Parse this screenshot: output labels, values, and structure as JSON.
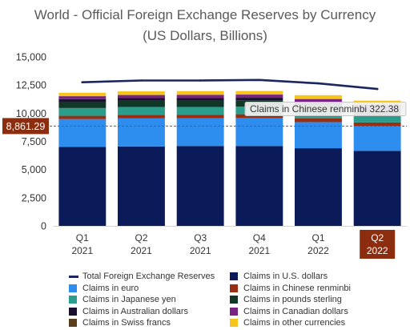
{
  "chart_data": {
    "type": "bar",
    "stacked": true,
    "title": "World - Official Foreign Exchange Reserves by Currency",
    "subtitle": "(US Dollars, Billions)",
    "ylim": [
      0,
      15000
    ],
    "y_ticks": [
      {
        "value": 0,
        "label": "0"
      },
      {
        "value": 2500,
        "label": "2,500"
      },
      {
        "value": 5000,
        "label": "5,000"
      },
      {
        "value": 7500,
        "label": "7,500"
      },
      {
        "value": 10000,
        "label": "10,000"
      },
      {
        "value": 12500,
        "label": "12,500"
      },
      {
        "value": 15000,
        "label": "15,000"
      }
    ],
    "categories": [
      {
        "quarter": "Q1",
        "year": "2021"
      },
      {
        "quarter": "Q2",
        "year": "2021"
      },
      {
        "quarter": "Q3",
        "year": "2021"
      },
      {
        "quarter": "Q4",
        "year": "2021"
      },
      {
        "quarter": "Q1",
        "year": "2022"
      },
      {
        "quarter": "Q2",
        "year": "2022"
      }
    ],
    "series": [
      {
        "name": "Total Foreign Exchange Reserves",
        "type": "line",
        "color": "#1b2660",
        "values": [
          12750,
          12900,
          12900,
          12950,
          12650,
          12150
        ]
      },
      {
        "name": "Claims in U.S. dollars",
        "type": "bar",
        "color": "#0b1b5a",
        "values": [
          7000,
          7050,
          7090,
          7090,
          6890,
          6660
        ]
      },
      {
        "name": "Claims in euro",
        "type": "bar",
        "color": "#2d8ef0",
        "values": [
          2480,
          2490,
          2460,
          2480,
          2320,
          2200
        ]
      },
      {
        "name": "Claims in Chinese renminbi",
        "type": "bar",
        "color": "#9a2e12",
        "values": [
          290,
          320,
          320,
          340,
          340,
          322.38
        ]
      },
      {
        "name": "Claims in Japanese yen",
        "type": "bar",
        "color": "#2a9d8c",
        "values": [
          690,
          690,
          680,
          670,
          620,
          550
        ]
      },
      {
        "name": "Claims in pounds sterling",
        "type": "bar",
        "color": "#113826",
        "values": [
          560,
          570,
          570,
          570,
          560,
          530
        ]
      },
      {
        "name": "Claims in Australian dollars",
        "type": "bar",
        "color": "#1a0f2e",
        "values": [
          220,
          220,
          220,
          220,
          220,
          210
        ]
      },
      {
        "name": "Claims in Canadian dollars",
        "type": "bar",
        "color": "#7b2382",
        "values": [
          260,
          270,
          280,
          280,
          290,
          280
        ]
      },
      {
        "name": "Claims in Swiss francs",
        "type": "bar",
        "color": "#5b3c1a",
        "values": [
          20,
          20,
          20,
          20,
          20,
          20
        ]
      },
      {
        "name": "Claims in other currencies",
        "type": "bar",
        "color": "#f6c41a",
        "values": [
          300,
          310,
          320,
          300,
          340,
          340
        ]
      }
    ],
    "grid": false,
    "legend_position": "bottom",
    "highlighted_category": 5,
    "highlight_color": "#8c2d0f",
    "crosshair": {
      "value": 8861.29,
      "label": "8,861.29"
    },
    "tooltip": {
      "series": "Claims in Chinese renminbi",
      "value": "322.38"
    }
  }
}
